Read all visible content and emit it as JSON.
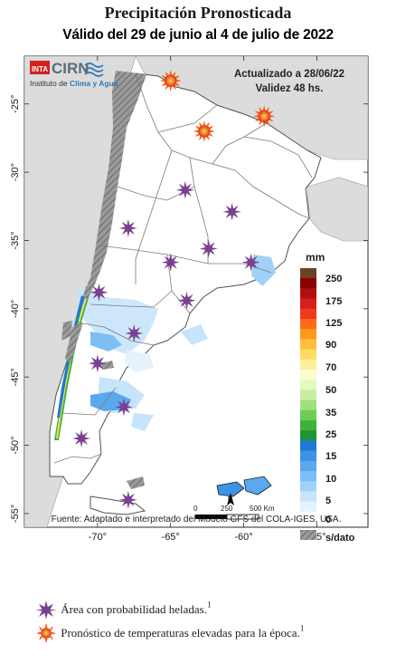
{
  "title": "Precipitación Pronosticada",
  "subtitle": "Válido del 29 de junio al 4 de julio de 2022",
  "logo": {
    "inta": "INTA",
    "cirn": "CIRN",
    "institute": "Instituto de ",
    "institute_em": "Clima y Agua"
  },
  "updated": "Actualizado a 28/06/22",
  "validity": "Validez 48 hs.",
  "source": "Fuente: Adaptado e interpretado del Modelo GFS del COLA-IGES, USA.",
  "scale": {
    "zero": "0",
    "mid": "250",
    "end": "500 Km",
    "north": "N"
  },
  "colorbar": {
    "unit": "mm",
    "labels": [
      "250",
      "175",
      "125",
      "90",
      "70",
      "50",
      "35",
      "25",
      "15",
      "10",
      "5",
      "0",
      "s/dato"
    ],
    "colors": [
      "#6b4226",
      "#8b0000",
      "#b01010",
      "#d61f1f",
      "#ee3a1f",
      "#ff6a1a",
      "#ff9a1a",
      "#ffbf3a",
      "#ffd966",
      "#ffef9c",
      "#fffbd0",
      "#e4f8c4",
      "#c7efa0",
      "#9fe07a",
      "#70cc55",
      "#3fb23a",
      "#1e9436",
      "#1c7ad6",
      "#3d93e4",
      "#5aa9ee",
      "#7cbff4",
      "#a0d2f8",
      "#c6e4fb",
      "#e3f2fd",
      "#ffffff"
    ]
  },
  "axes": {
    "lat_ticks": [
      "-25°",
      "-30°",
      "-35°",
      "-40°",
      "-45°",
      "-50°",
      "-55°"
    ],
    "lon_ticks": [
      "-70°",
      "-65°",
      "-60°",
      "-55°"
    ]
  },
  "frost_markers": [
    {
      "lon": -64.0,
      "lat": -31.3
    },
    {
      "lon": -60.8,
      "lat": -32.9
    },
    {
      "lon": -67.9,
      "lat": -34.1
    },
    {
      "lon": -65.0,
      "lat": -36.6
    },
    {
      "lon": -62.4,
      "lat": -35.6
    },
    {
      "lon": -59.5,
      "lat": -36.6
    },
    {
      "lon": -69.9,
      "lat": -38.8
    },
    {
      "lon": -63.9,
      "lat": -39.4
    },
    {
      "lon": -67.5,
      "lat": -41.8
    },
    {
      "lon": -70.0,
      "lat": -44.0
    },
    {
      "lon": -68.2,
      "lat": -47.2
    },
    {
      "lon": -71.1,
      "lat": -49.5
    },
    {
      "lon": -67.9,
      "lat": -54.0
    }
  ],
  "heat_markers": [
    {
      "lon": -65.0,
      "lat": -23.3
    },
    {
      "lon": -58.6,
      "lat": -25.9
    },
    {
      "lon": -62.7,
      "lat": -27.0
    }
  ],
  "legend_items": [
    {
      "label": "Área con probabilidad heladas.",
      "sup": "1"
    },
    {
      "label": "Pronóstico de temperaturas elevadas para la época.",
      "sup": "1"
    }
  ]
}
